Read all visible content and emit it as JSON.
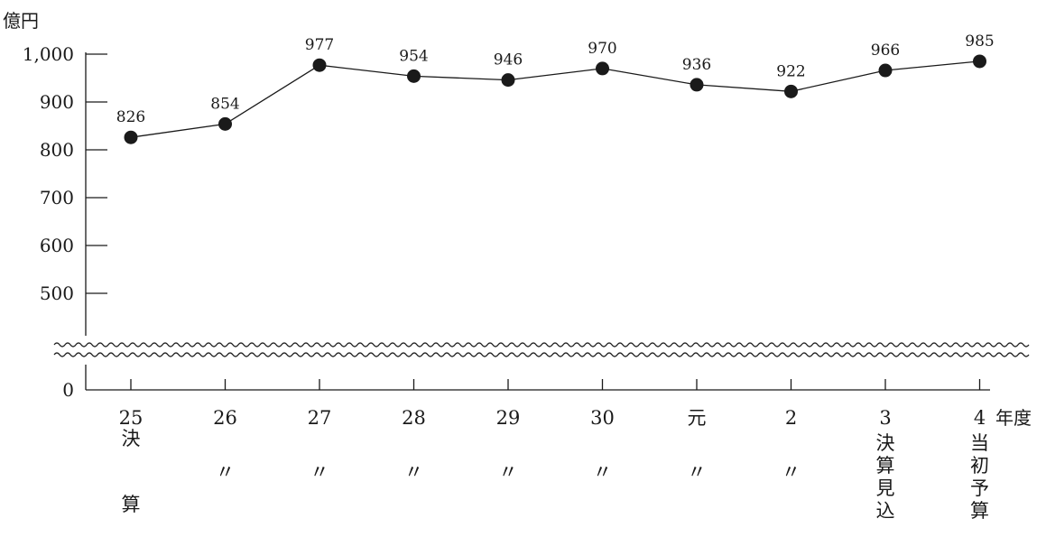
{
  "chart_data": {
    "type": "line",
    "y_unit": "億円",
    "x_unit": "年度",
    "y_ticks": [
      "0",
      "500",
      "600",
      "700",
      "800",
      "900",
      "1,000"
    ],
    "ylim": [
      500,
      1000
    ],
    "axis_break": true,
    "grid": false,
    "categories": [
      {
        "year": "25",
        "note": [
          "決",
          "",
          "算"
        ]
      },
      {
        "year": "26",
        "note": [
          "",
          "〃"
        ]
      },
      {
        "year": "27",
        "note": [
          "",
          "〃"
        ]
      },
      {
        "year": "28",
        "note": [
          "",
          "〃"
        ]
      },
      {
        "year": "29",
        "note": [
          "",
          "〃"
        ]
      },
      {
        "year": "30",
        "note": [
          "",
          "〃"
        ]
      },
      {
        "year": "元",
        "note": [
          "",
          "〃"
        ]
      },
      {
        "year": "2",
        "note": [
          "",
          "〃"
        ]
      },
      {
        "year": "3",
        "note": [
          "決",
          "算",
          "見",
          "込"
        ]
      },
      {
        "year": "4",
        "note": [
          "当",
          "初",
          "予",
          "算"
        ]
      }
    ],
    "values": [
      826,
      854,
      977,
      954,
      946,
      970,
      936,
      922,
      966,
      985
    ],
    "data_labels": [
      "826",
      "854",
      "977",
      "954",
      "946",
      "970",
      "936",
      "922",
      "966",
      "985"
    ],
    "marker": "filled-circle",
    "color": "#1a1a1a"
  }
}
